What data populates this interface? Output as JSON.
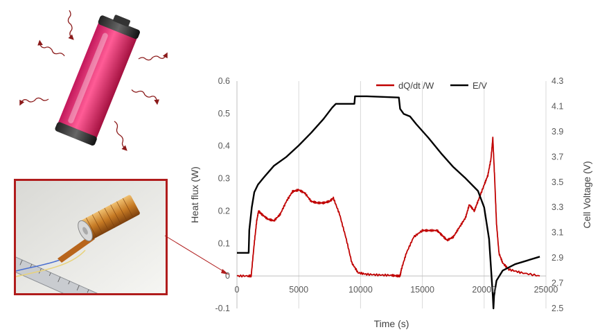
{
  "chart_data": {
    "type": "line",
    "xlabel": "Time (s)",
    "ylabel_left": "Heat flux (W)",
    "ylabel_right": "Cell Voltage (V)",
    "xlim": [
      0,
      25000
    ],
    "ylim_left": [
      -0.1,
      0.6
    ],
    "ylim_right": [
      2.5,
      4.3
    ],
    "grid": "vertical",
    "legend": "top-right",
    "x_ticks": [
      "0",
      "5000",
      "10000",
      "15000",
      "20000",
      "25000"
    ],
    "y_left_ticks": [
      "-0.1",
      "0",
      "0.1",
      "0.2",
      "0.3",
      "0.4",
      "0.5",
      "0.6"
    ],
    "y_right_ticks": [
      "2.5",
      "2.7",
      "2.9",
      "3.1",
      "3.3",
      "3.5",
      "3.7",
      "3.9",
      "4.1",
      "4.3"
    ],
    "series": [
      {
        "name": "dQ/dt /W",
        "axis": "left",
        "color": "#c00000",
        "points": [
          [
            0,
            0.0
          ],
          [
            1000,
            0.0
          ],
          [
            1150,
            0.0
          ],
          [
            1400,
            0.1
          ],
          [
            1600,
            0.17
          ],
          [
            1750,
            0.2
          ],
          [
            2000,
            0.19
          ],
          [
            2500,
            0.175
          ],
          [
            3000,
            0.17
          ],
          [
            3500,
            0.19
          ],
          [
            4000,
            0.23
          ],
          [
            4500,
            0.26
          ],
          [
            5000,
            0.265
          ],
          [
            5500,
            0.255
          ],
          [
            6000,
            0.23
          ],
          [
            6500,
            0.225
          ],
          [
            7000,
            0.225
          ],
          [
            7500,
            0.23
          ],
          [
            7800,
            0.24
          ],
          [
            8300,
            0.19
          ],
          [
            8800,
            0.12
          ],
          [
            9300,
            0.04
          ],
          [
            9800,
            0.01
          ],
          [
            10500,
            0.005
          ],
          [
            11500,
            0.003
          ],
          [
            12500,
            0.002
          ],
          [
            13000,
            0.0
          ],
          [
            13200,
            0.0
          ],
          [
            13300,
            0.02
          ],
          [
            13700,
            0.07
          ],
          [
            14300,
            0.12
          ],
          [
            15000,
            0.14
          ],
          [
            15500,
            0.14
          ],
          [
            16200,
            0.14
          ],
          [
            16600,
            0.125
          ],
          [
            17000,
            0.11
          ],
          [
            17500,
            0.12
          ],
          [
            18000,
            0.15
          ],
          [
            18500,
            0.18
          ],
          [
            18800,
            0.22
          ],
          [
            19200,
            0.2
          ],
          [
            19500,
            0.23
          ],
          [
            20000,
            0.28
          ],
          [
            20300,
            0.31
          ],
          [
            20550,
            0.36
          ],
          [
            20700,
            0.425
          ],
          [
            20850,
            0.3
          ],
          [
            21000,
            0.16
          ],
          [
            21200,
            0.07
          ],
          [
            21500,
            0.04
          ],
          [
            22000,
            0.02
          ],
          [
            23000,
            0.01
          ],
          [
            24500,
            0.0
          ]
        ]
      },
      {
        "name": "E/V",
        "axis": "right",
        "color": "#000000",
        "points": [
          [
            0,
            2.94
          ],
          [
            900,
            2.94
          ],
          [
            950,
            2.94
          ],
          [
            1000,
            3.12
          ],
          [
            1200,
            3.3
          ],
          [
            1400,
            3.42
          ],
          [
            1700,
            3.48
          ],
          [
            2200,
            3.54
          ],
          [
            3000,
            3.63
          ],
          [
            4000,
            3.7
          ],
          [
            5000,
            3.79
          ],
          [
            6000,
            3.89
          ],
          [
            7000,
            4.0
          ],
          [
            7700,
            4.09
          ],
          [
            8000,
            4.12
          ],
          [
            9500,
            4.12
          ],
          [
            9550,
            4.18
          ],
          [
            10500,
            4.18
          ],
          [
            13100,
            4.17
          ],
          [
            13200,
            4.08
          ],
          [
            13500,
            4.04
          ],
          [
            14000,
            4.02
          ],
          [
            14500,
            3.96
          ],
          [
            15500,
            3.85
          ],
          [
            16500,
            3.73
          ],
          [
            17500,
            3.62
          ],
          [
            18500,
            3.53
          ],
          [
            19500,
            3.43
          ],
          [
            20000,
            3.3
          ],
          [
            20400,
            3.05
          ],
          [
            20700,
            2.6
          ],
          [
            20750,
            2.5
          ],
          [
            20800,
            2.6
          ],
          [
            21000,
            2.72
          ],
          [
            21500,
            2.8
          ],
          [
            22500,
            2.85
          ],
          [
            23500,
            2.88
          ],
          [
            24500,
            2.91
          ]
        ]
      }
    ]
  }
}
